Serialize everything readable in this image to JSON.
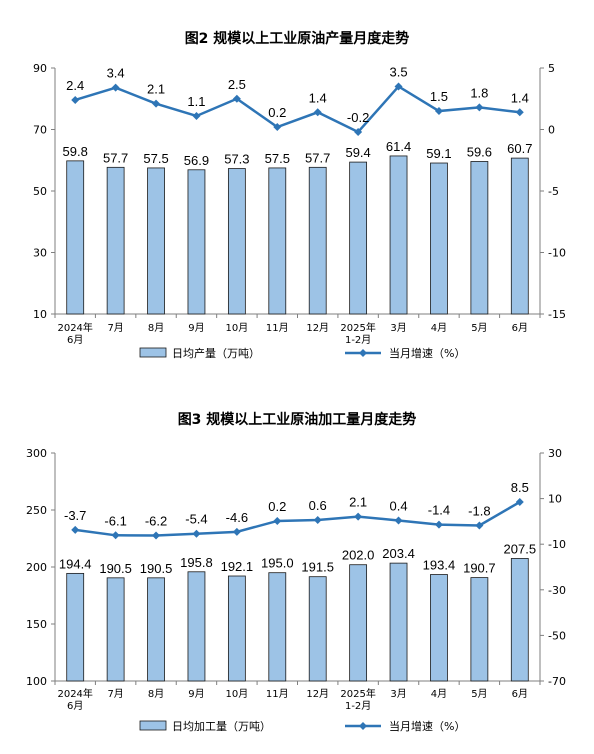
{
  "chart_data": [
    {
      "type": "bar",
      "title": "图2 规模以上工业原油产量月度走势",
      "categories": [
        "2024年\n6月",
        "7月",
        "8月",
        "9月",
        "10月",
        "11月",
        "12月",
        "2025年\n1-2月",
        "3月",
        "4月",
        "5月",
        "6月"
      ],
      "series": [
        {
          "name": "日均产量（万吨）",
          "type": "bar",
          "axis": "left",
          "values": [
            59.8,
            57.7,
            57.5,
            56.9,
            57.3,
            57.5,
            57.7,
            59.4,
            61.4,
            59.1,
            59.6,
            60.7
          ]
        },
        {
          "name": "当月增速（%）",
          "type": "line",
          "axis": "right",
          "values": [
            2.4,
            3.4,
            2.1,
            1.1,
            2.5,
            0.2,
            1.4,
            -0.2,
            3.5,
            1.5,
            1.8,
            1.4
          ]
        }
      ],
      "ylim_left": [
        10,
        90
      ],
      "yticks_left": [
        10,
        30,
        50,
        70,
        90
      ],
      "ylim_right": [
        -15,
        5
      ],
      "yticks_right": [
        -15,
        -10,
        -5,
        0,
        5
      ],
      "legend_position": "bottom",
      "grid": false,
      "colors": {
        "bar": "#9dc3e6",
        "bar_stroke": "#1a1a1a",
        "line": "#2e75b6"
      }
    },
    {
      "type": "bar",
      "title": "图3 规模以上工业原油加工量月度走势",
      "categories": [
        "2024年\n6月",
        "7月",
        "8月",
        "9月",
        "10月",
        "11月",
        "12月",
        "2025年\n1-2月",
        "3月",
        "4月",
        "5月",
        "6月"
      ],
      "series": [
        {
          "name": "日均加工量（万吨）",
          "type": "bar",
          "axis": "left",
          "values": [
            194.4,
            190.5,
            190.5,
            195.8,
            192.1,
            195.0,
            191.5,
            202.0,
            203.4,
            193.4,
            190.7,
            207.5
          ]
        },
        {
          "name": "当月增速（%）",
          "type": "line",
          "axis": "right",
          "values": [
            -3.7,
            -6.1,
            -6.2,
            -5.4,
            -4.6,
            0.2,
            0.6,
            2.1,
            0.4,
            -1.4,
            -1.8,
            8.5
          ]
        }
      ],
      "ylim_left": [
        100,
        300
      ],
      "yticks_left": [
        100,
        150,
        200,
        250,
        300
      ],
      "ylim_right": [
        -70,
        30
      ],
      "yticks_right": [
        -70,
        -50,
        -30,
        -10,
        10,
        30
      ],
      "legend_position": "bottom",
      "grid": false,
      "colors": {
        "bar": "#9dc3e6",
        "bar_stroke": "#1a1a1a",
        "line": "#2e75b6"
      }
    }
  ]
}
